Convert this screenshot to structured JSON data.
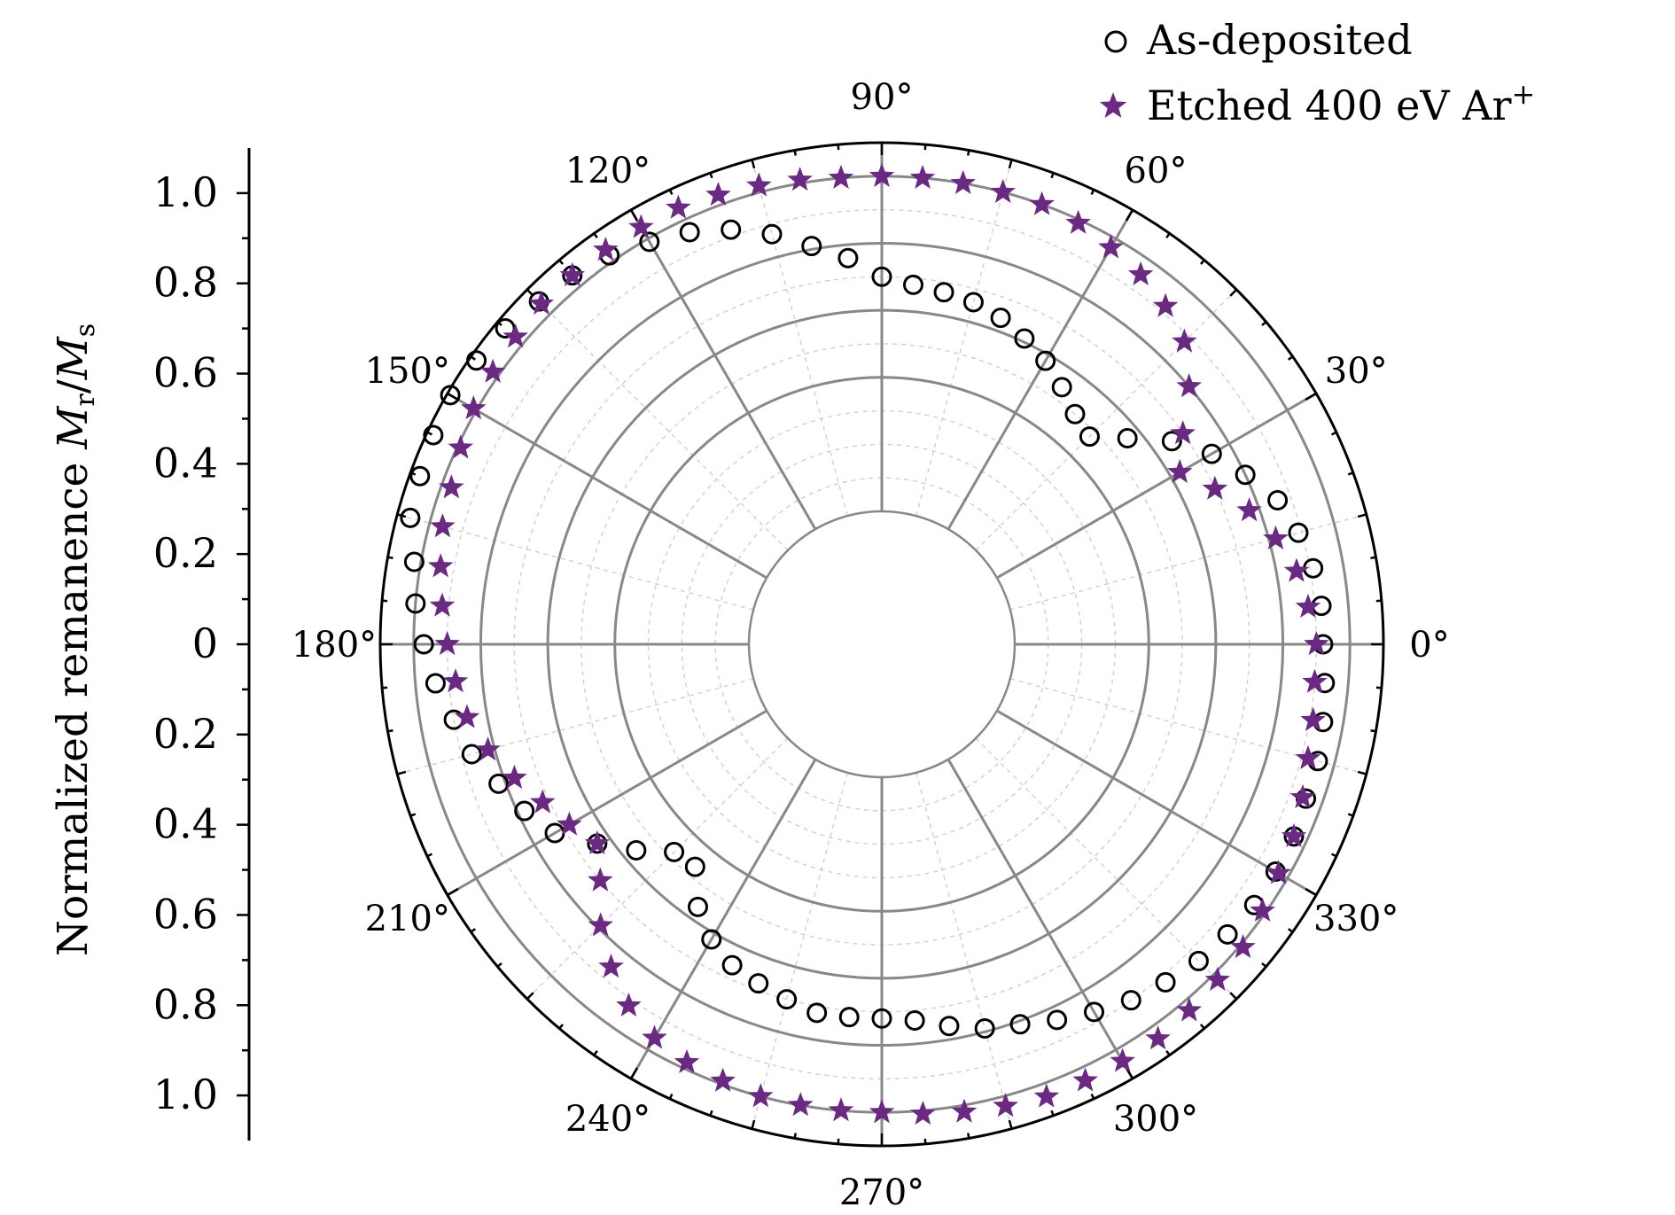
{
  "chart_data": {
    "type": "scatter",
    "coordinate_system": "polar",
    "title": "",
    "ylabel": {
      "main": "Normalized remanence ",
      "var1": "M",
      "sub1": "r",
      "slash": "/",
      "var2": "M",
      "sub2": "s"
    },
    "radial_range": [
      0,
      1.1
    ],
    "radial_hole": 0.3,
    "radial_gridlines": [
      0.4,
      0.6,
      0.8,
      1.0
    ],
    "angular_gridline_step_deg": 30,
    "grid": true,
    "legend_position": "top-right",
    "radial_tick_labels": [
      "1.0",
      "0.8",
      "0.6",
      "0.4",
      "0.2",
      "0",
      "0.2",
      "0.4",
      "0.6",
      "0.8",
      "1.0"
    ],
    "radial_tick_values": [
      1.0,
      0.8,
      0.6,
      0.4,
      0.2,
      0,
      -0.2,
      -0.4,
      -0.6,
      -0.8,
      -1.0
    ],
    "angle_labels": [
      "0°",
      "30°",
      "60°",
      "90°",
      "120°",
      "150°",
      "180°",
      "210°",
      "240°",
      "270°",
      "300°",
      "330°"
    ],
    "angle_values": [
      0,
      30,
      60,
      90,
      120,
      150,
      180,
      210,
      240,
      270,
      300,
      330
    ],
    "colors": {
      "etched": "#6b2a82",
      "as_deposited": "#000000",
      "grid": "#888888"
    },
    "series": [
      {
        "name": "As-deposited",
        "marker": "open-circle",
        "theta": [
          0,
          5,
          10,
          15,
          20,
          25,
          30,
          35,
          40,
          45,
          50,
          55,
          60,
          65,
          70,
          75,
          80,
          85,
          90,
          95,
          100,
          105,
          110,
          115,
          120,
          125,
          130,
          135,
          140,
          145,
          150,
          155,
          160,
          165,
          170,
          175,
          180,
          185,
          190,
          195,
          200,
          205,
          210,
          215,
          220,
          225,
          230,
          235,
          240,
          245,
          250,
          255,
          260,
          265,
          270,
          275,
          280,
          285,
          290,
          295,
          300,
          305,
          310,
          315,
          320,
          325,
          330,
          335,
          340,
          345,
          350,
          355
        ],
        "r": [
          0.92,
          0.92,
          0.91,
          0.89,
          0.86,
          0.8,
          0.74,
          0.66,
          0.56,
          0.48,
          0.5,
          0.54,
          0.58,
          0.61,
          0.64,
          0.66,
          0.67,
          0.68,
          0.7,
          0.76,
          0.81,
          0.87,
          0.92,
          0.96,
          0.99,
          1.02,
          1.04,
          1.05,
          1.07,
          1.08,
          1.09,
          1.08,
          1.07,
          1.06,
          1.02,
          1.0,
          0.97,
          0.94,
          0.9,
          0.87,
          0.82,
          0.78,
          0.73,
          0.64,
          0.56,
          0.48,
          0.47,
          0.56,
          0.62,
          0.66,
          0.68,
          0.7,
          0.72,
          0.72,
          0.72,
          0.73,
          0.76,
          0.79,
          0.81,
          0.84,
          0.87,
          0.9,
          0.92,
          0.94,
          0.95,
          0.96,
          0.96,
          0.96,
          0.95,
          0.95,
          0.94,
          0.93
        ]
      },
      {
        "name": "Etched 400 eV Ar",
        "name_superscript": "+",
        "marker": "star",
        "theta": [
          0,
          5,
          10,
          15,
          20,
          25,
          30,
          35,
          40,
          45,
          50,
          55,
          60,
          65,
          70,
          75,
          80,
          85,
          90,
          95,
          100,
          105,
          110,
          115,
          120,
          125,
          130,
          135,
          140,
          145,
          150,
          155,
          160,
          165,
          170,
          175,
          180,
          185,
          190,
          195,
          200,
          205,
          210,
          215,
          220,
          225,
          230,
          235,
          240,
          245,
          250,
          255,
          260,
          265,
          270,
          275,
          280,
          285,
          290,
          295,
          300,
          305,
          310,
          315,
          320,
          325,
          330,
          335,
          340,
          345,
          350,
          355
        ],
        "r": [
          0.9,
          0.88,
          0.86,
          0.82,
          0.77,
          0.7,
          0.63,
          0.7,
          0.8,
          0.88,
          0.92,
          0.95,
          0.97,
          0.99,
          1.0,
          1.0,
          1.0,
          1.0,
          1.0,
          1.0,
          1.01,
          1.02,
          1.03,
          1.04,
          1.04,
          1.04,
          1.04,
          1.04,
          1.03,
          1.02,
          1.01,
          0.99,
          0.97,
          0.96,
          0.94,
          0.92,
          0.9,
          0.88,
          0.86,
          0.82,
          0.77,
          0.72,
          0.68,
          0.64,
          0.7,
          0.79,
          0.86,
          0.92,
          0.96,
          0.98,
          0.99,
          1.0,
          1.0,
          1.0,
          1.0,
          1.01,
          1.02,
          1.03,
          1.04,
          1.04,
          1.04,
          1.04,
          1.03,
          1.02,
          1.01,
          0.99,
          0.97,
          0.96,
          0.94,
          0.92,
          0.91,
          0.9
        ]
      }
    ]
  }
}
